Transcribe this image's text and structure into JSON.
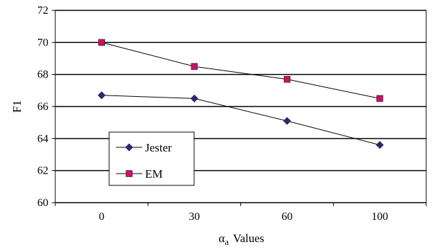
{
  "chart_data": {
    "type": "line",
    "title": "",
    "xlabel": {
      "symbol": "α",
      "subscript": "a",
      "text": "Values"
    },
    "ylabel": "F1",
    "categories": [
      "0",
      "30",
      "60",
      "100"
    ],
    "ylim": [
      60,
      72
    ],
    "yticks": [
      "60",
      "62",
      "64",
      "66",
      "68",
      "70",
      "72"
    ],
    "grid": "horizontal",
    "legend_position": "lower-left",
    "series": [
      {
        "name": "Jester",
        "marker": "diamond",
        "color": "#2b2b6b",
        "values": [
          66.7,
          66.5,
          65.1,
          63.6
        ]
      },
      {
        "name": "EM",
        "marker": "square",
        "color": "#cc1166",
        "values": [
          70.0,
          68.5,
          67.7,
          66.5
        ]
      }
    ]
  }
}
